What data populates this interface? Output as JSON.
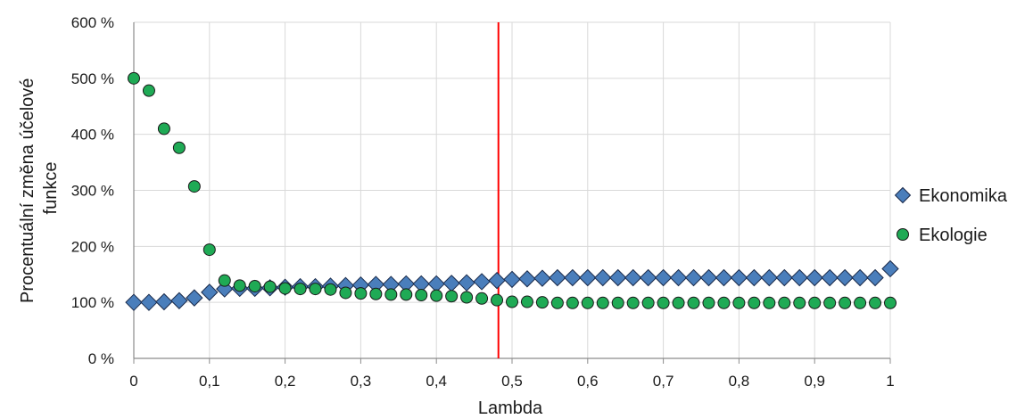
{
  "chart_data": {
    "type": "scatter",
    "xlabel": "Lambda",
    "ylabel_lines": [
      "Procentuální změna účelové",
      "funkce"
    ],
    "xlim": [
      0,
      1
    ],
    "ylim": [
      0,
      600
    ],
    "x_ticks": [
      0,
      0.1,
      0.2,
      0.3,
      0.4,
      0.5,
      0.6,
      0.7,
      0.8,
      0.9,
      1
    ],
    "x_tick_labels": [
      "0",
      "0,1",
      "0,2",
      "0,3",
      "0,4",
      "0,5",
      "0,6",
      "0,7",
      "0,8",
      "0,9",
      "1"
    ],
    "y_ticks": [
      0,
      100,
      200,
      300,
      400,
      500,
      600
    ],
    "y_tick_labels": [
      "0 %",
      "100 %",
      "200 %",
      "300 %",
      "400 %",
      "500 %",
      "600 %"
    ],
    "grid": true,
    "legend_position": "right",
    "vertical_line": {
      "x": 0.482,
      "color": "#ff0000"
    },
    "x": [
      0,
      0.02,
      0.04,
      0.06,
      0.08,
      0.1,
      0.12,
      0.14,
      0.16,
      0.18,
      0.2,
      0.22,
      0.24,
      0.26,
      0.28,
      0.3,
      0.32,
      0.34,
      0.36,
      0.38,
      0.4,
      0.42,
      0.44,
      0.46,
      0.48,
      0.5,
      0.52,
      0.54,
      0.56,
      0.58,
      0.6,
      0.62,
      0.64,
      0.66,
      0.68,
      0.7,
      0.72,
      0.74,
      0.76,
      0.78,
      0.8,
      0.82,
      0.84,
      0.86,
      0.88,
      0.9,
      0.92,
      0.94,
      0.96,
      0.98,
      1
    ],
    "series": [
      {
        "name": "Ekonomika",
        "marker": "diamond",
        "color": "#4a7ebb",
        "values": [
          100,
          100,
          101,
          103,
          108,
          118,
          124,
          125,
          125,
          126,
          127,
          128,
          128,
          129,
          130,
          131,
          132,
          132,
          133,
          133,
          133,
          134,
          135,
          137,
          139,
          141,
          142,
          143,
          144,
          144,
          144,
          144,
          144,
          144,
          144,
          144,
          144,
          144,
          144,
          144,
          144,
          144,
          144,
          144,
          144,
          144,
          144,
          144,
          144,
          144,
          160
        ]
      },
      {
        "name": "Ekologie",
        "marker": "circle",
        "color": "#1faa55",
        "values": [
          500,
          478,
          410,
          376,
          307,
          194,
          139,
          130,
          129,
          128,
          125,
          124,
          124,
          123,
          117,
          116,
          115,
          114,
          114,
          113,
          112,
          111,
          109,
          107,
          104,
          101,
          101,
          100,
          99,
          99,
          99,
          99,
          99,
          99,
          99,
          99,
          99,
          99,
          99,
          99,
          99,
          99,
          99,
          99,
          99,
          99,
          99,
          99,
          99,
          99,
          99
        ]
      }
    ]
  }
}
